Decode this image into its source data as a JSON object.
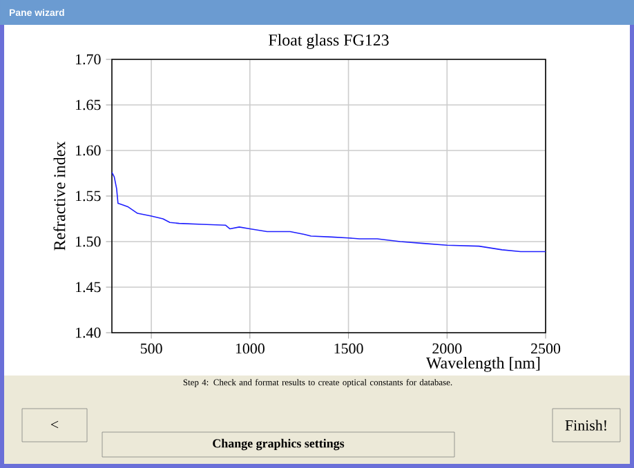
{
  "chart_data": {
    "type": "line",
    "title": "Float glass FG123",
    "xlabel": "Wavelength [nm]",
    "ylabel": "Refractive index",
    "x": [
      300,
      312,
      324,
      331,
      359,
      383,
      430,
      500,
      559,
      594,
      641,
      758,
      876,
      899,
      946,
      1000,
      1087,
      1204,
      1275,
      1310,
      1416,
      1500,
      1556,
      1646,
      1763,
      1880,
      2000,
      2162,
      2279,
      2373,
      2500
    ],
    "values": [
      1.576,
      1.571,
      1.558,
      1.542,
      1.54,
      1.538,
      1.531,
      1.528,
      1.525,
      1.521,
      1.52,
      1.519,
      1.518,
      1.514,
      1.516,
      1.514,
      1.511,
      1.511,
      1.508,
      1.506,
      1.505,
      1.504,
      1.503,
      1.503,
      1.5,
      1.498,
      1.496,
      1.495,
      1.491,
      1.489,
      1.489
    ],
    "color": "#1f1fff",
    "xlim": [
      300,
      2500
    ],
    "ylim": [
      1.4,
      1.7
    ],
    "xticks": [
      500,
      1000,
      1500,
      2000,
      2500
    ],
    "yticks": [
      {
        "value": 1.4,
        "label": "1.40"
      },
      {
        "value": 1.45,
        "label": "1.45"
      },
      {
        "value": 1.5,
        "label": "1.50"
      },
      {
        "value": 1.55,
        "label": "1.55"
      },
      {
        "value": 1.6,
        "label": "1.60"
      },
      {
        "value": 1.65,
        "label": "1.65"
      },
      {
        "value": 1.7,
        "label": "1.70"
      }
    ],
    "grid": true,
    "marker": "none",
    "line_style": "solid",
    "annotations": [
      "Pane wizard",
      "Step 4: Check and format results to create optical constants for database.",
      "<",
      "Change graphics settings",
      "Finish!"
    ]
  }
}
